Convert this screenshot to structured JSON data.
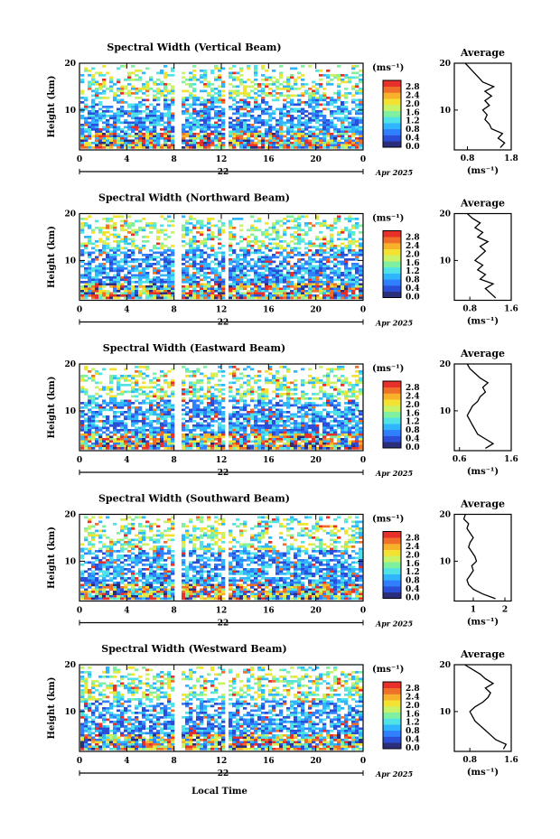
{
  "colorbar": {
    "unit_label": "(ms⁻¹)",
    "tick_labels": [
      "2.8",
      "2.4",
      "2.0",
      "1.6",
      "1.2",
      "0.8",
      "0.4",
      "0.0"
    ],
    "colors": [
      "#2b2e7a",
      "#2a4fd6",
      "#2f7fff",
      "#2fb6ff",
      "#4fe3e8",
      "#7ff0a0",
      "#c9f266",
      "#f3e232",
      "#f7b12a",
      "#f0702a",
      "#e8302a"
    ]
  },
  "xlabel_main": "Local Time",
  "chart_data": [
    {
      "type": "heatmap",
      "title": "Spectral Width (Vertical Beam)",
      "ylabel": "Height (km)",
      "x_ticks": [
        "0",
        "4",
        "8",
        "12",
        "16",
        "20",
        "0"
      ],
      "y_ticks": [
        "20",
        "10"
      ],
      "xlim": [
        0,
        24
      ],
      "ylim": [
        1.5,
        20
      ],
      "date_day": "22",
      "date_suffix": "Apr 2025",
      "profile": {
        "title": "Average",
        "xlabel": "(ms⁻¹)",
        "x_ticks": [
          "0.8",
          "1.8"
        ],
        "y_ticks": [
          "20",
          "10"
        ],
        "xlim": [
          0.5,
          1.8
        ],
        "heights": [
          2,
          3,
          4,
          5,
          6,
          7,
          8,
          9,
          10,
          11,
          12,
          13,
          14,
          15,
          16,
          17,
          18,
          19,
          20
        ],
        "values": [
          1.55,
          1.65,
          1.5,
          1.6,
          1.35,
          1.3,
          1.2,
          1.25,
          1.15,
          1.3,
          1.2,
          1.35,
          1.2,
          1.4,
          1.15,
          1.05,
          0.95,
          0.85,
          0.75
        ]
      }
    },
    {
      "type": "heatmap",
      "title": "Spectral Width (Northward Beam)",
      "ylabel": "Height (km)",
      "x_ticks": [
        "0",
        "4",
        "8",
        "12",
        "16",
        "20",
        "0"
      ],
      "y_ticks": [
        "20",
        "10"
      ],
      "xlim": [
        0,
        24
      ],
      "ylim": [
        1.5,
        20
      ],
      "date_day": "22",
      "date_suffix": "Apr 2025",
      "profile": {
        "title": "Average",
        "xlabel": "(ms⁻¹)",
        "x_ticks": [
          "0.8",
          "1.6"
        ],
        "y_ticks": [
          "20",
          "10"
        ],
        "xlim": [
          0.5,
          1.6
        ],
        "heights": [
          2,
          3,
          4,
          5,
          6,
          7,
          8,
          9,
          10,
          11,
          12,
          13,
          14,
          15,
          16,
          17,
          18,
          19,
          20
        ],
        "values": [
          1.3,
          1.2,
          1.1,
          1.25,
          1.0,
          1.1,
          0.95,
          1.05,
          0.9,
          1.0,
          1.1,
          1.0,
          1.15,
          0.95,
          1.05,
          0.9,
          1.0,
          0.85,
          0.75
        ]
      }
    },
    {
      "type": "heatmap",
      "title": "Spectral Width (Eastward Beam)",
      "ylabel": "Height (km)",
      "x_ticks": [
        "0",
        "4",
        "8",
        "12",
        "16",
        "20",
        "0"
      ],
      "y_ticks": [
        "20",
        "10"
      ],
      "xlim": [
        0,
        24
      ],
      "ylim": [
        1.5,
        20
      ],
      "date_day": "22",
      "date_suffix": "Apr 2025",
      "profile": {
        "title": "Average",
        "xlabel": "(ms⁻¹)",
        "x_ticks": [
          "0.6",
          "1.6"
        ],
        "y_ticks": [
          "20",
          "10"
        ],
        "xlim": [
          0.5,
          1.6
        ],
        "heights": [
          2,
          3,
          4,
          5,
          6,
          7,
          8,
          9,
          10,
          11,
          12,
          13,
          14,
          15,
          16,
          17,
          18,
          19,
          20
        ],
        "values": [
          1.1,
          1.25,
          1.1,
          0.95,
          0.9,
          0.85,
          0.8,
          0.75,
          0.8,
          0.85,
          0.95,
          1.0,
          1.1,
          1.05,
          1.15,
          1.0,
          0.9,
          0.8,
          0.75
        ]
      }
    },
    {
      "type": "heatmap",
      "title": "Spectral Width (Southward Beam)",
      "ylabel": "Height (km)",
      "x_ticks": [
        "0",
        "4",
        "8",
        "12",
        "16",
        "20",
        "0"
      ],
      "y_ticks": [
        "20",
        "10"
      ],
      "xlim": [
        0,
        24
      ],
      "ylim": [
        1.5,
        20
      ],
      "date_day": "22",
      "date_suffix": "Apr 2025",
      "profile": {
        "title": "Average",
        "xlabel": "(ms⁻¹)",
        "x_ticks": [
          "1",
          "2"
        ],
        "y_ticks": [
          "20",
          "10"
        ],
        "xlim": [
          0.4,
          2.2
        ],
        "heights": [
          2,
          3,
          4,
          5,
          6,
          7,
          8,
          9,
          10,
          11,
          12,
          13,
          14,
          15,
          16,
          17,
          18,
          19,
          20
        ],
        "values": [
          1.7,
          1.3,
          1.0,
          0.85,
          0.8,
          0.9,
          1.0,
          0.95,
          1.1,
          1.05,
          0.95,
          0.85,
          0.9,
          1.0,
          0.9,
          0.8,
          0.85,
          0.7,
          0.75
        ]
      }
    },
    {
      "type": "heatmap",
      "title": "Spectral Width (Westward Beam)",
      "ylabel": "Height (km)",
      "x_ticks": [
        "0",
        "4",
        "8",
        "12",
        "16",
        "20",
        "0"
      ],
      "y_ticks": [
        "20",
        "10"
      ],
      "xlim": [
        0,
        24
      ],
      "ylim": [
        1.5,
        20
      ],
      "date_day": "22",
      "date_suffix": "Apr 2025",
      "profile": {
        "title": "Average",
        "xlabel": "(ms⁻¹)",
        "x_ticks": [
          "0.8",
          "1.6"
        ],
        "y_ticks": [
          "20",
          "10"
        ],
        "xlim": [
          0.5,
          1.6
        ],
        "heights": [
          2,
          3,
          4,
          5,
          6,
          7,
          8,
          9,
          10,
          11,
          12,
          13,
          14,
          15,
          16,
          17,
          18,
          19,
          20
        ],
        "values": [
          1.45,
          1.5,
          1.3,
          1.2,
          1.1,
          1.0,
          0.9,
          0.85,
          0.8,
          0.9,
          1.05,
          1.15,
          1.2,
          1.1,
          1.25,
          1.1,
          1.0,
          0.85,
          0.7
        ]
      }
    }
  ]
}
